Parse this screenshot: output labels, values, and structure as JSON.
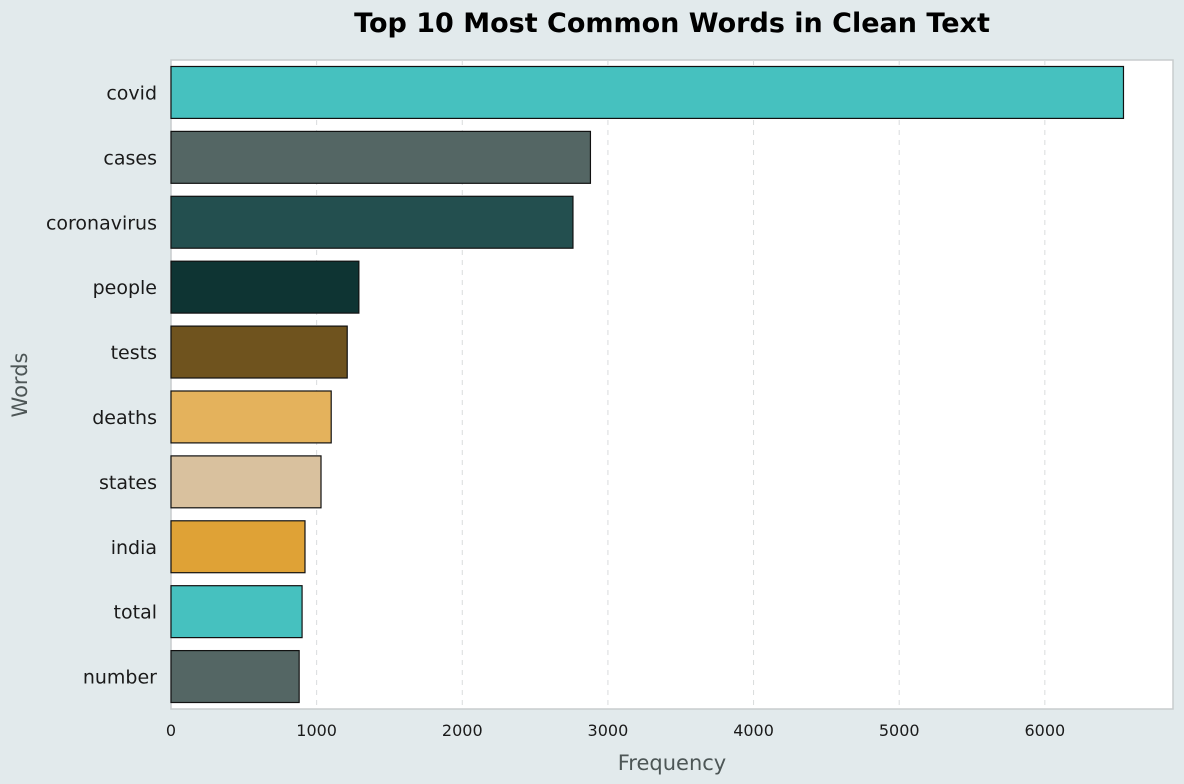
{
  "chart_data": {
    "type": "bar",
    "orientation": "horizontal",
    "title": "Top 10 Most Common Words in Clean Text",
    "xlabel": "Frequency",
    "ylabel": "Words",
    "categories": [
      "covid",
      "cases",
      "coronavirus",
      "people",
      "tests",
      "deaths",
      "states",
      "india",
      "total",
      "number"
    ],
    "values": [
      6540,
      2880,
      2760,
      1290,
      1210,
      1100,
      1030,
      920,
      900,
      880
    ],
    "colors": [
      "#46c1bf",
      "#546664",
      "#234f4f",
      "#0e3433",
      "#6f531e",
      "#e4b25c",
      "#d9c19e",
      "#dfa236",
      "#46c1bf",
      "#546664"
    ],
    "xlim": [
      0,
      6880
    ],
    "xticks": [
      0,
      1000,
      2000,
      3000,
      4000,
      5000,
      6000
    ],
    "grid": "x-dashed",
    "legend": "none"
  }
}
